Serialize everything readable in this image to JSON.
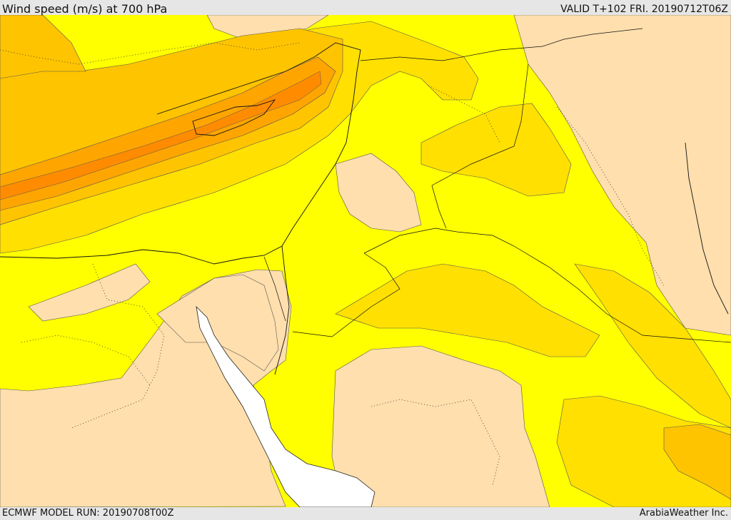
{
  "header": {
    "title": "Wind speed (m/s) at 700 hPa",
    "valid": "VALID T+102 FRI. 20190712T06Z"
  },
  "footer": {
    "model_run": "ECMWF MODEL RUN: 20190708T00Z",
    "credit": "ArabiaWeather Inc."
  },
  "map": {
    "variable": "wind speed",
    "level": "700 hPa",
    "units": "m/s",
    "colors": {
      "calm_band": "#ffdfad",
      "band_1": "#ffff00",
      "band_2": "#ffe000",
      "band_3": "#ffc400",
      "band_4": "#ffa500",
      "band_5": "#ff8c00",
      "sea_unfilled": "#ffffff"
    }
  }
}
